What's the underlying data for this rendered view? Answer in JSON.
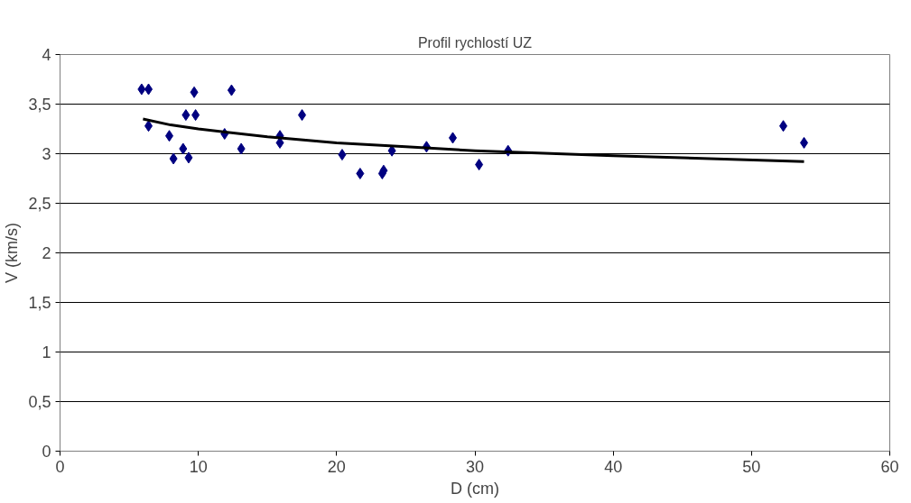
{
  "chart_data": {
    "type": "scatter",
    "title": "Profil rychlostí UZ",
    "xlabel": "D (cm)",
    "ylabel": "V (km/s)",
    "xlim": [
      0,
      60
    ],
    "xticks": [
      0,
      10,
      20,
      30,
      40,
      50,
      60
    ],
    "ylim": [
      0,
      4
    ],
    "yticks": [
      0,
      {
        "value": 0.5,
        "label": "0,5"
      },
      1,
      {
        "value": 1.5,
        "label": "1,5"
      },
      2,
      {
        "value": 2.5,
        "label": "2,5"
      },
      3,
      {
        "value": 3.5,
        "label": "3,5"
      },
      4
    ],
    "grid": "y",
    "marker": "diamond",
    "series": [
      {
        "color": "#000080",
        "x": [
          5.9,
          6.4,
          6.4,
          7.9,
          8.2,
          8.9,
          9.1,
          9.3,
          9.7,
          9.8,
          11.9,
          12.4,
          13.1,
          15.9,
          15.9,
          17.5,
          20.4,
          21.7,
          23.3,
          23.4,
          24.0,
          26.5,
          28.4,
          30.3,
          32.4,
          52.3,
          53.8
        ],
        "values": [
          3.65,
          3.65,
          3.28,
          3.18,
          2.95,
          3.05,
          3.39,
          2.96,
          3.62,
          3.39,
          3.2,
          3.64,
          3.05,
          3.18,
          3.11,
          3.39,
          2.99,
          2.8,
          2.8,
          2.83,
          3.03,
          3.07,
          3.16,
          2.89,
          3.03,
          3.28,
          3.11
        ]
      },
      {
        "type": "line",
        "color": "#000000",
        "marker": "none",
        "x": [
          6,
          8,
          10,
          15,
          20,
          25,
          30,
          40,
          53.8
        ],
        "values": [
          3.35,
          3.29,
          3.25,
          3.17,
          3.11,
          3.07,
          3.03,
          2.98,
          2.92
        ]
      }
    ]
  }
}
